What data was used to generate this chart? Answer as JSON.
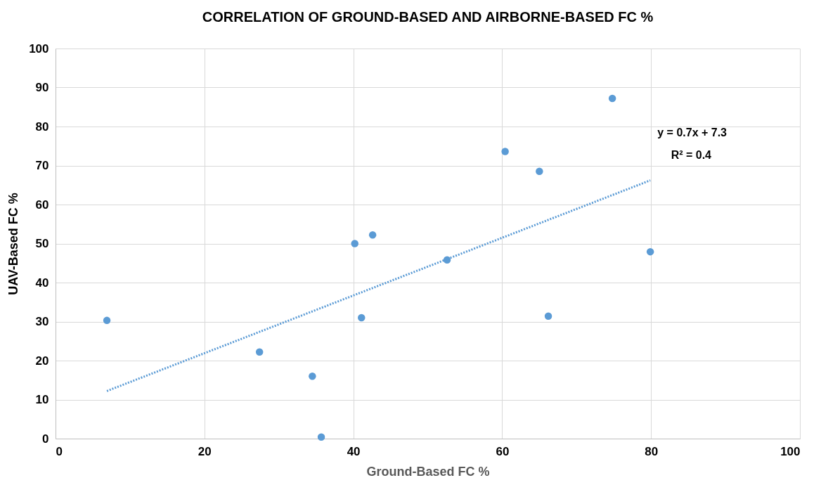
{
  "chart_data": {
    "type": "scatter",
    "title": "CORRELATION OF GROUND-BASED AND  AIRBORNE-BASED FC %",
    "xlabel": "Ground-Based  FC %",
    "ylabel": "UAV-Based FC  %",
    "xlim": [
      0,
      100
    ],
    "xticks": [
      0,
      20,
      40,
      60,
      80,
      100
    ],
    "ylim": [
      0,
      100
    ],
    "yticks": [
      0,
      10,
      20,
      30,
      40,
      50,
      60,
      70,
      80,
      90,
      100
    ],
    "grid": true,
    "series": [
      {
        "type": "scatter",
        "color": "#5b9bd5",
        "marker": "circle",
        "x": [
          6.9,
          27.4,
          34.5,
          35.7,
          40.2,
          41.1,
          42.6,
          52.6,
          60.4,
          65.0,
          66.2,
          74.8,
          79.9
        ],
        "values": [
          30.3,
          22.2,
          16.0,
          0.4,
          50.0,
          31.0,
          52.2,
          45.8,
          73.6,
          68.5,
          31.4,
          87.2,
          47.9
        ]
      },
      {
        "type": "line",
        "color": "#5b9bd5",
        "line_style": "dotted",
        "x": [
          6.9,
          79.9
        ],
        "values": [
          12.2,
          66.2
        ]
      }
    ],
    "annotations": [
      "y = 0.7x + 7.3",
      "R² = 0.4"
    ]
  }
}
